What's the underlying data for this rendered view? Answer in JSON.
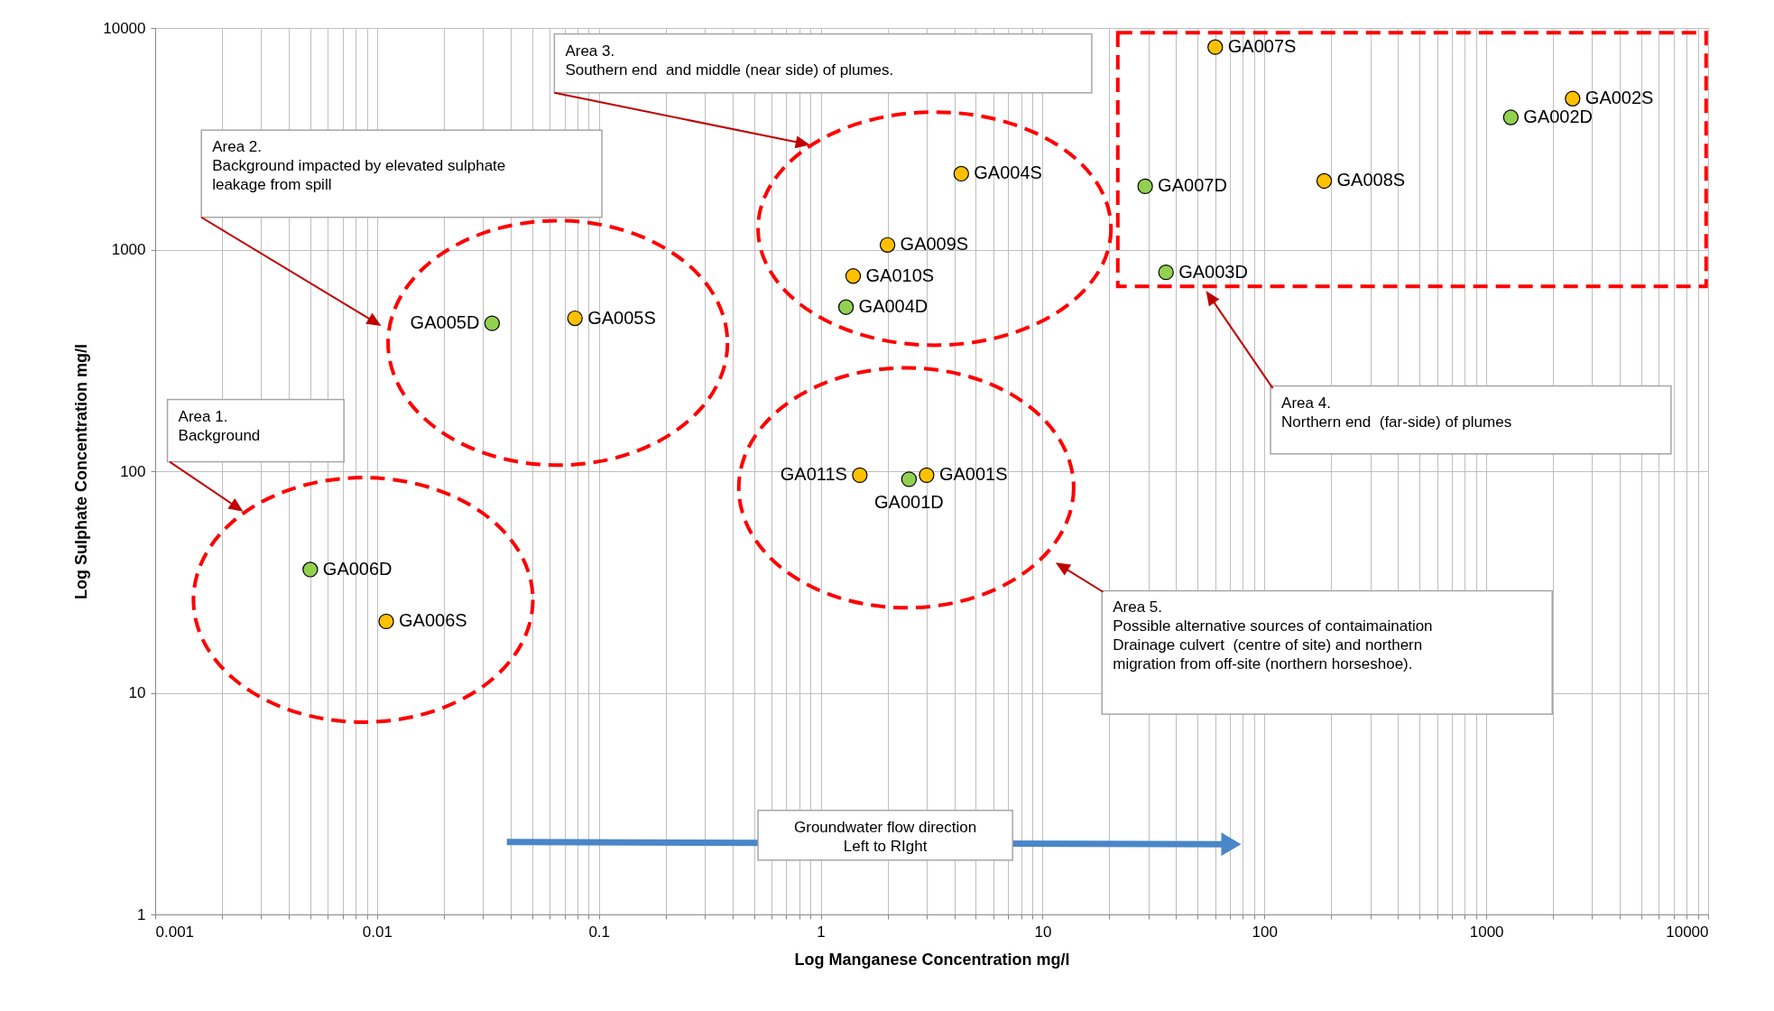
{
  "chart_data": {
    "type": "scatter",
    "xlabel": "Log Manganese Concentration mg/l",
    "ylabel": "Log Sulphate  Concentration  mg/l",
    "log": "xy",
    "grid": true,
    "legend": false,
    "marker": "circle",
    "xlim": [
      0.001,
      10000
    ],
    "ylim": [
      1,
      10000
    ],
    "xticks": [
      0.001,
      {
        "value": 0.002,
        "label": null
      },
      {
        "value": 0.003,
        "label": null
      },
      {
        "value": 0.004,
        "label": null
      },
      {
        "value": 0.005,
        "label": null
      },
      {
        "value": 0.006,
        "label": null
      },
      {
        "value": 0.007,
        "label": null
      },
      {
        "value": 0.008,
        "label": null
      },
      {
        "value": 0.009,
        "label": null
      },
      0.01,
      {
        "value": 0.02,
        "label": null
      },
      {
        "value": 0.03,
        "label": null
      },
      {
        "value": 0.04,
        "label": null
      },
      {
        "value": 0.05,
        "label": null
      },
      {
        "value": 0.06,
        "label": null
      },
      {
        "value": 0.07,
        "label": null
      },
      {
        "value": 0.08,
        "label": null
      },
      {
        "value": 0.09,
        "label": null
      },
      0.1,
      {
        "value": 0.2,
        "label": null
      },
      {
        "value": 0.3,
        "label": null
      },
      {
        "value": 0.4,
        "label": null
      },
      {
        "value": 0.5,
        "label": null
      },
      {
        "value": 0.6,
        "label": null
      },
      {
        "value": 0.7,
        "label": null
      },
      {
        "value": 0.8,
        "label": null
      },
      {
        "value": 0.9,
        "label": null
      },
      1,
      {
        "value": 2,
        "label": null
      },
      {
        "value": 3,
        "label": null
      },
      {
        "value": 4,
        "label": null
      },
      {
        "value": 5,
        "label": null
      },
      {
        "value": 6,
        "label": null
      },
      {
        "value": 7,
        "label": null
      },
      {
        "value": 8,
        "label": null
      },
      {
        "value": 9,
        "label": null
      },
      10,
      {
        "value": 20,
        "label": null
      },
      {
        "value": 30,
        "label": null
      },
      {
        "value": 40,
        "label": null
      },
      {
        "value": 50,
        "label": null
      },
      {
        "value": 60,
        "label": null
      },
      {
        "value": 70,
        "label": null
      },
      {
        "value": 80,
        "label": null
      },
      {
        "value": 90,
        "label": null
      },
      100,
      {
        "value": 200,
        "label": null
      },
      {
        "value": 300,
        "label": null
      },
      {
        "value": 400,
        "label": null
      },
      {
        "value": 500,
        "label": null
      },
      {
        "value": 600,
        "label": null
      },
      {
        "value": 700,
        "label": null
      },
      {
        "value": 800,
        "label": null
      },
      {
        "value": 900,
        "label": null
      },
      1000,
      {
        "value": 2000,
        "label": null
      },
      {
        "value": 3000,
        "label": null
      },
      {
        "value": 4000,
        "label": null
      },
      {
        "value": 5000,
        "label": null
      },
      {
        "value": 6000,
        "label": null
      },
      {
        "value": 7000,
        "label": null
      },
      {
        "value": 8000,
        "label": null
      },
      {
        "value": 9000,
        "label": null
      },
      10000
    ],
    "yticks": [
      1,
      10,
      100,
      1000,
      10000
    ],
    "series": [
      {
        "color": "#92d050",
        "x": [
          29,
          1290,
          36,
          1.3,
          0.033,
          2.5,
          0.005
        ],
        "values": [
          1930,
          3950,
          790,
          550,
          465,
          92,
          36
        ],
        "value_labels": [
          "GA007D",
          "GA002D",
          "GA003D",
          "GA004D",
          "GA005D",
          "GA001D",
          "GA006D"
        ]
      },
      {
        "color": "#ffc000",
        "x": [
          60,
          2450,
          4.3,
          186,
          2.0,
          1.4,
          0.078,
          1.5,
          3.0,
          0.011
        ],
        "values": [
          8200,
          4800,
          2200,
          2040,
          1050,
          760,
          490,
          96,
          96,
          21
        ],
        "value_labels": [
          "GA007S",
          "GA002S",
          "GA004S",
          "GA008S",
          "GA009S",
          "GA010S",
          "GA005S",
          "GA011S",
          "GA001S",
          "GA006S"
        ]
      }
    ],
    "annotations": [
      "Area 1.\nBackground",
      "Area 2.\nBackground impacted by elevated sulphate\nleakage from spill",
      "Area 3.\nSouthern end  and middle (near side) of plumes.",
      "Area 4.\nNorthern end  (far-side) of plumes",
      "Area 5.\nPossible alternative sources of contaimaination\nDrainage culvert  (centre of site) and northern\nmigration from off-site (northern horseshoe).",
      "Groundwater flow direction\nLeft to RIght"
    ]
  }
}
